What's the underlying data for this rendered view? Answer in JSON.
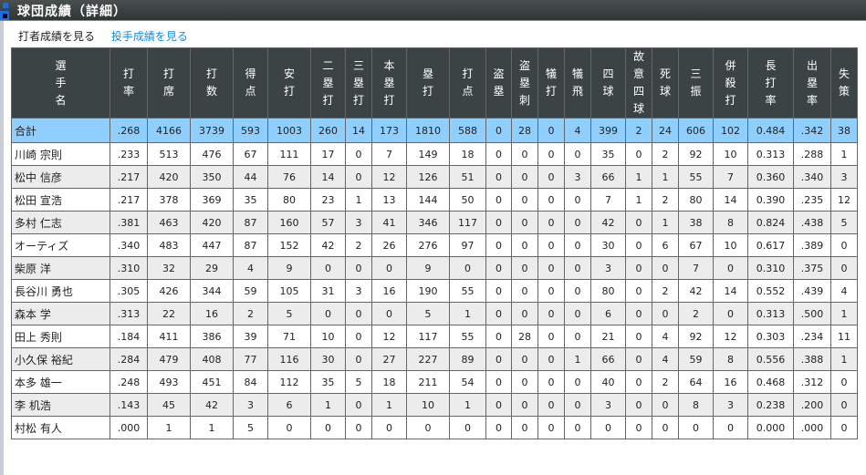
{
  "title": "球団成績（詳細）",
  "links": {
    "batting": "打者成績を見る",
    "pitching": "投手成績を見る"
  },
  "columns": [
    "選手名",
    "打率",
    "打席",
    "打数",
    "得点",
    "安打",
    "二塁打",
    "三塁打",
    "本塁打",
    "塁打",
    "打点",
    "盗塁",
    "盗塁刺",
    "犠打",
    "犠飛",
    "四球",
    "故意四球",
    "死球",
    "三振",
    "併殺打",
    "長打率",
    "出塁率",
    "失策"
  ],
  "total": [
    "合計",
    ".268",
    "4166",
    "3739",
    "593",
    "1003",
    "260",
    "14",
    "173",
    "1810",
    "588",
    "0",
    "28",
    "0",
    "4",
    "399",
    "2",
    "24",
    "606",
    "102",
    "0.484",
    ".342",
    "38"
  ],
  "rows": [
    [
      "川崎 宗則",
      ".233",
      "513",
      "476",
      "67",
      "111",
      "17",
      "0",
      "7",
      "149",
      "18",
      "0",
      "0",
      "0",
      "0",
      "35",
      "0",
      "2",
      "92",
      "10",
      "0.313",
      ".288",
      "1"
    ],
    [
      "松中 信彦",
      ".217",
      "420",
      "350",
      "44",
      "76",
      "14",
      "0",
      "12",
      "126",
      "51",
      "0",
      "0",
      "0",
      "3",
      "66",
      "1",
      "1",
      "55",
      "7",
      "0.360",
      ".340",
      "3"
    ],
    [
      "松田 宣浩",
      ".217",
      "378",
      "369",
      "35",
      "80",
      "23",
      "1",
      "13",
      "144",
      "50",
      "0",
      "0",
      "0",
      "0",
      "7",
      "1",
      "2",
      "80",
      "14",
      "0.390",
      ".235",
      "12"
    ],
    [
      "多村 仁志",
      ".381",
      "463",
      "420",
      "87",
      "160",
      "57",
      "3",
      "41",
      "346",
      "117",
      "0",
      "0",
      "0",
      "0",
      "42",
      "0",
      "1",
      "38",
      "8",
      "0.824",
      ".438",
      "5"
    ],
    [
      "オーティズ",
      ".340",
      "483",
      "447",
      "87",
      "152",
      "42",
      "2",
      "26",
      "276",
      "97",
      "0",
      "0",
      "0",
      "0",
      "30",
      "0",
      "6",
      "67",
      "10",
      "0.617",
      ".389",
      "0"
    ],
    [
      "柴原 洋",
      ".310",
      "32",
      "29",
      "4",
      "9",
      "0",
      "0",
      "0",
      "9",
      "0",
      "0",
      "0",
      "0",
      "0",
      "3",
      "0",
      "0",
      "7",
      "0",
      "0.310",
      ".375",
      "0"
    ],
    [
      "長谷川 勇也",
      ".305",
      "426",
      "344",
      "59",
      "105",
      "31",
      "3",
      "16",
      "190",
      "55",
      "0",
      "0",
      "0",
      "0",
      "80",
      "0",
      "2",
      "42",
      "14",
      "0.552",
      ".439",
      "4"
    ],
    [
      "森本 学",
      ".313",
      "22",
      "16",
      "2",
      "5",
      "0",
      "0",
      "0",
      "5",
      "1",
      "0",
      "0",
      "0",
      "0",
      "6",
      "0",
      "0",
      "2",
      "0",
      "0.313",
      ".500",
      "1"
    ],
    [
      "田上 秀則",
      ".184",
      "411",
      "386",
      "39",
      "71",
      "10",
      "0",
      "12",
      "117",
      "55",
      "0",
      "28",
      "0",
      "0",
      "21",
      "0",
      "4",
      "92",
      "12",
      "0.303",
      ".234",
      "11"
    ],
    [
      "小久保 裕紀",
      ".284",
      "479",
      "408",
      "77",
      "116",
      "30",
      "0",
      "27",
      "227",
      "89",
      "0",
      "0",
      "0",
      "1",
      "66",
      "0",
      "4",
      "59",
      "8",
      "0.556",
      ".388",
      "1"
    ],
    [
      "本多 雄一",
      ".248",
      "493",
      "451",
      "84",
      "112",
      "35",
      "5",
      "18",
      "211",
      "54",
      "0",
      "0",
      "0",
      "0",
      "40",
      "0",
      "2",
      "64",
      "16",
      "0.468",
      ".312",
      "0"
    ],
    [
      "李 机浩",
      ".143",
      "45",
      "42",
      "3",
      "6",
      "1",
      "0",
      "1",
      "10",
      "1",
      "0",
      "0",
      "0",
      "0",
      "3",
      "0",
      "0",
      "8",
      "3",
      "0.238",
      ".200",
      "0"
    ],
    [
      "村松 有人",
      ".000",
      "1",
      "1",
      "5",
      "0",
      "0",
      "0",
      "0",
      "0",
      "0",
      "0",
      "0",
      "0",
      "0",
      "0",
      "0",
      "0",
      "0",
      "0",
      "0.000",
      ".000",
      "0"
    ]
  ]
}
